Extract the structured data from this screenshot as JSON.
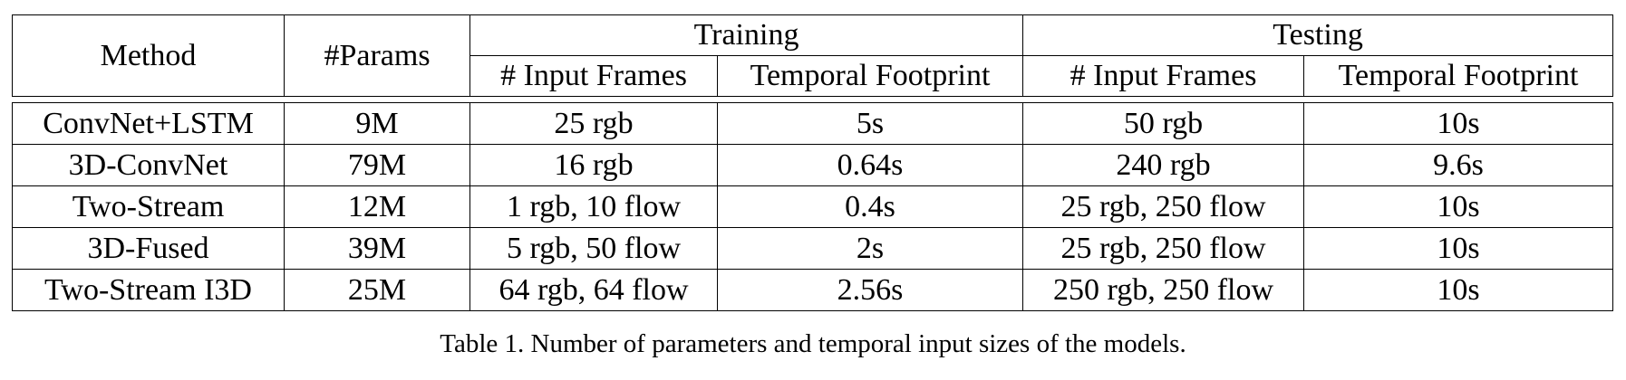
{
  "table": {
    "headers": {
      "method": "Method",
      "params": "#Params",
      "training": "Training",
      "testing": "Testing",
      "training_input_frames": "# Input Frames",
      "training_temporal_footprint": "Temporal Footprint",
      "testing_input_frames": "# Input Frames",
      "testing_temporal_footprint": "Temporal Footprint"
    },
    "rows": [
      [
        "ConvNet+LSTM",
        "9M",
        "25 rgb",
        "5s",
        "50 rgb",
        "10s"
      ],
      [
        "3D-ConvNet",
        "79M",
        "16 rgb",
        "0.64s",
        "240 rgb",
        "9.6s"
      ],
      [
        "Two-Stream",
        "12M",
        "1 rgb, 10 flow",
        "0.4s",
        "25 rgb, 250 flow",
        "10s"
      ],
      [
        "3D-Fused",
        "39M",
        "5 rgb, 50 flow",
        "2s",
        "25 rgb, 250 flow",
        "10s"
      ],
      [
        "Two-Stream I3D",
        "25M",
        "64 rgb, 64 flow",
        "2.56s",
        "250 rgb, 250 flow",
        "10s"
      ]
    ]
  },
  "caption": "Table 1. Number of parameters and temporal input sizes of the models."
}
